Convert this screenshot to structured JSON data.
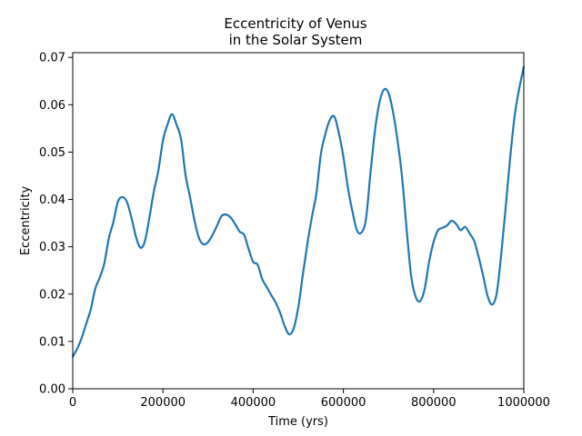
{
  "chart_data": {
    "type": "line",
    "title_line1": "Eccentricity of Venus",
    "title_line2": "in the Solar System",
    "xlabel": "Time (yrs)",
    "ylabel": "Eccentricity",
    "xlim": [
      0,
      1000000
    ],
    "ylim": [
      0.0,
      0.071
    ],
    "xticks": [
      0,
      200000,
      400000,
      600000,
      800000,
      1000000
    ],
    "xtick_labels": [
      "0",
      "200000",
      "400000",
      "600000",
      "800000",
      "1000000"
    ],
    "yticks": [
      0.0,
      0.01,
      0.02,
      0.03,
      0.04,
      0.05,
      0.06,
      0.07
    ],
    "ytick_labels": [
      "0.00",
      "0.01",
      "0.02",
      "0.03",
      "0.04",
      "0.05",
      "0.06",
      "0.07"
    ],
    "grid": false,
    "line_color": "#1f77b4",
    "x": [
      0,
      10000,
      20000,
      30000,
      40000,
      50000,
      60000,
      70000,
      80000,
      90000,
      100000,
      110000,
      120000,
      130000,
      140000,
      150000,
      160000,
      170000,
      180000,
      190000,
      200000,
      210000,
      220000,
      230000,
      240000,
      250000,
      260000,
      270000,
      280000,
      290000,
      300000,
      310000,
      320000,
      330000,
      340000,
      350000,
      360000,
      370000,
      380000,
      390000,
      400000,
      410000,
      420000,
      430000,
      440000,
      450000,
      460000,
      470000,
      480000,
      490000,
      500000,
      510000,
      520000,
      530000,
      540000,
      550000,
      560000,
      570000,
      580000,
      590000,
      600000,
      610000,
      620000,
      630000,
      640000,
      650000,
      660000,
      670000,
      680000,
      690000,
      700000,
      710000,
      720000,
      730000,
      740000,
      750000,
      760000,
      770000,
      780000,
      790000,
      800000,
      810000,
      820000,
      830000,
      840000,
      850000,
      860000,
      870000,
      880000,
      890000,
      900000,
      910000,
      920000,
      930000,
      940000,
      950000,
      960000,
      970000,
      980000,
      990000,
      1000000
    ],
    "y": [
      0.0068,
      0.0085,
      0.0108,
      0.0138,
      0.0168,
      0.0212,
      0.0235,
      0.0265,
      0.0318,
      0.0352,
      0.0395,
      0.0405,
      0.0395,
      0.0362,
      0.0322,
      0.0298,
      0.0312,
      0.0362,
      0.0418,
      0.0462,
      0.0525,
      0.0558,
      0.058,
      0.0558,
      0.0528,
      0.0452,
      0.0405,
      0.0355,
      0.0318,
      0.0305,
      0.031,
      0.0325,
      0.0345,
      0.0365,
      0.0368,
      0.0362,
      0.0348,
      0.0332,
      0.0325,
      0.0295,
      0.0268,
      0.0262,
      0.0232,
      0.0215,
      0.0198,
      0.0182,
      0.016,
      0.0132,
      0.0115,
      0.0128,
      0.0172,
      0.024,
      0.0305,
      0.0362,
      0.0412,
      0.0495,
      0.0538,
      0.0568,
      0.0575,
      0.054,
      0.049,
      0.0425,
      0.0375,
      0.0335,
      0.033,
      0.0358,
      0.0455,
      0.0545,
      0.0605,
      0.0632,
      0.0625,
      0.0585,
      0.0525,
      0.0448,
      0.034,
      0.024,
      0.0195,
      0.0185,
      0.021,
      0.0268,
      0.031,
      0.0335,
      0.034,
      0.0345,
      0.0355,
      0.0348,
      0.0335,
      0.0342,
      0.0328,
      0.0312,
      0.0278,
      0.0238,
      0.0195,
      0.0178,
      0.0202,
      0.0285,
      0.0385,
      0.049,
      0.0578,
      0.0635,
      0.068
    ]
  }
}
